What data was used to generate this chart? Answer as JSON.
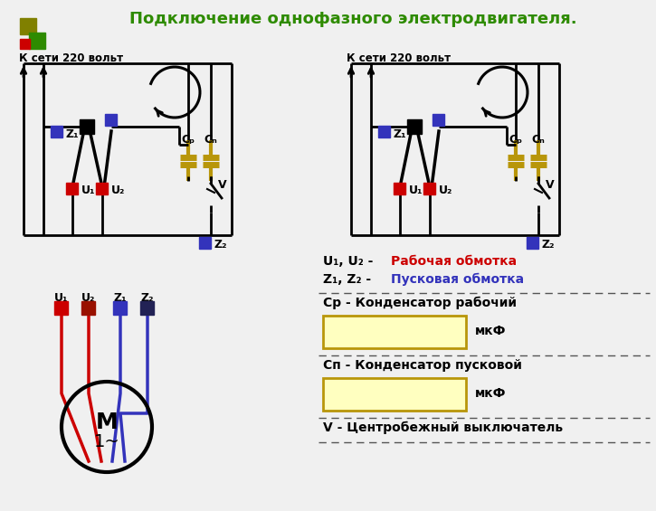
{
  "title": "Подключение однофазного электродвигателя.",
  "title_color": "#2e8b00",
  "bg_color": "#f0f0f0",
  "red_color": "#cc0000",
  "blue_color": "#3333bb",
  "black_color": "#000000",
  "yellow_color": "#b8960a",
  "light_yellow": "#ffffc0",
  "net_label": "К сети 220 вольт",
  "label_u1u2_black": "U₁, U₂ - ",
  "label_u1u2_red": "Рабочая обмотка",
  "label_z1z2_black": "Z₁, Z₂ - ",
  "label_z1z2_blue": "Пусковая обмотка",
  "label_cr": "Ср - Конденсатор рабочий",
  "label_mkf": "мкФ",
  "label_cp": "Сп - Конденсатор пусковой",
  "label_v": "V - Центробежный выключатель",
  "logo_olive": "#808000",
  "logo_red": "#cc0000",
  "logo_green": "#2e8b00",
  "dark_navy": "#2222aa"
}
